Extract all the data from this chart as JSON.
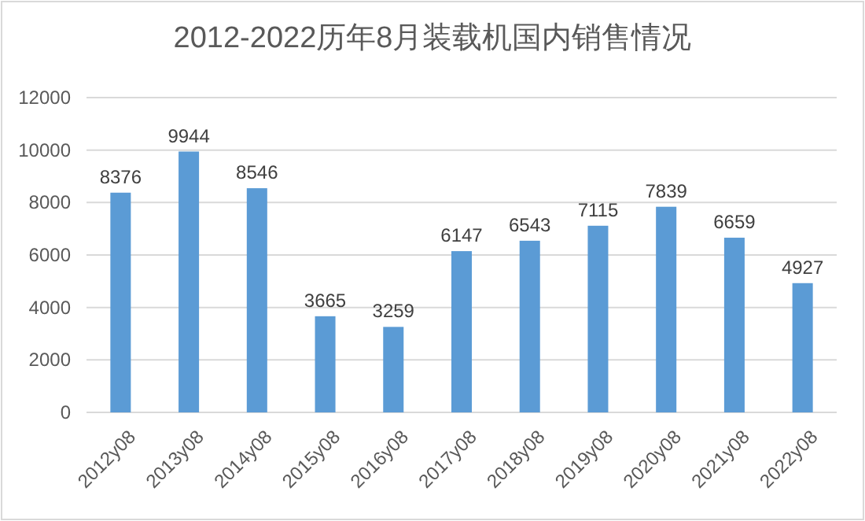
{
  "chart_data": {
    "type": "bar",
    "title": "2012-2022历年8月装载机国内销售情况",
    "categories": [
      "2012y08",
      "2013y08",
      "2014y08",
      "2015y08",
      "2016y08",
      "2017y08",
      "2018y08",
      "2019y08",
      "2020y08",
      "2021y08",
      "2022y08"
    ],
    "values": [
      8376,
      9944,
      8546,
      3665,
      3259,
      6147,
      6543,
      7115,
      7839,
      6659,
      4927
    ],
    "color": "#5b9bd5",
    "ylim": [
      0,
      12000
    ],
    "yticks": [
      0,
      2000,
      4000,
      6000,
      8000,
      10000,
      12000
    ],
    "grid": "y",
    "data_labels": true
  }
}
